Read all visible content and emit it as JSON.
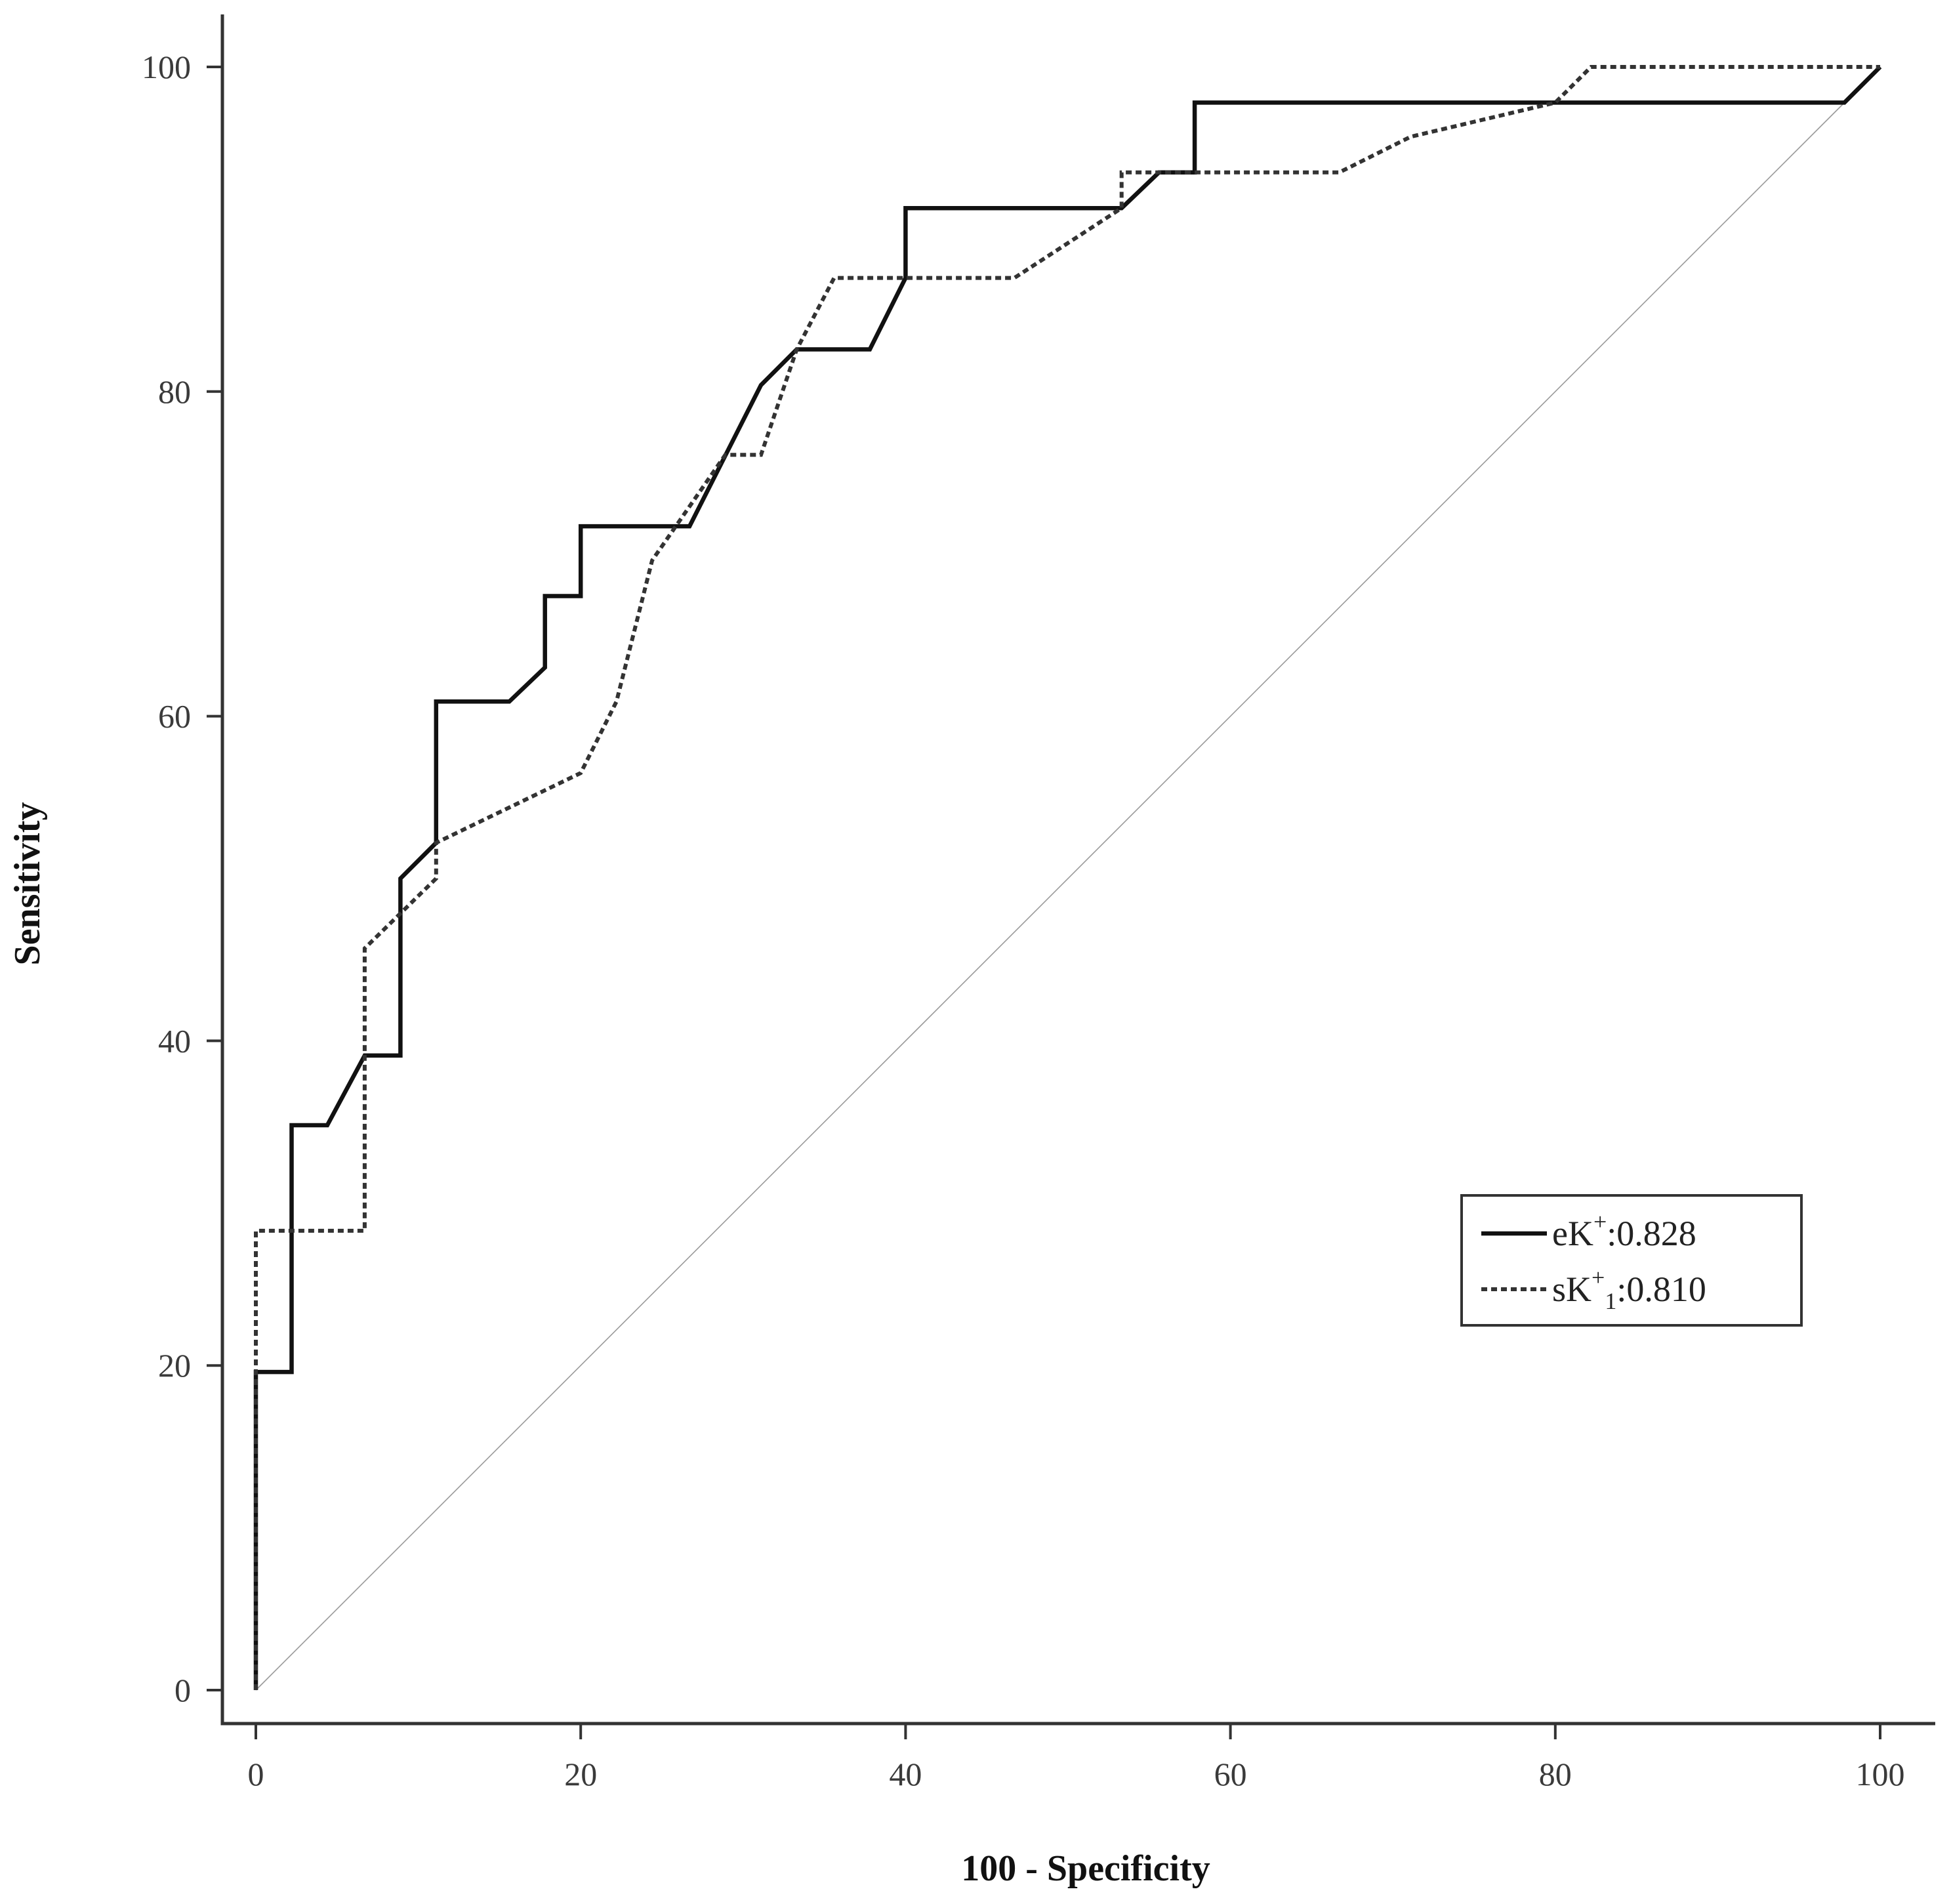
{
  "chart_data": {
    "type": "line",
    "title": "",
    "xlabel": "100 - Specificity",
    "ylabel": "Sensitivity",
    "xlim": [
      0,
      100
    ],
    "ylim": [
      0,
      100
    ],
    "x_ticks": [
      "0",
      "20",
      "40",
      "60",
      "80",
      "100"
    ],
    "y_ticks": [
      "0",
      "20",
      "40",
      "60",
      "80",
      "100"
    ],
    "grid": false,
    "legend_position": "right",
    "reference_line": {
      "x": [
        0,
        100
      ],
      "y": [
        0,
        100
      ],
      "color": "#9a9a9a"
    },
    "series": [
      {
        "name": "eK",
        "name_sup": "+",
        "name_sub": "",
        "auc_label": ":0.828",
        "style": "solid",
        "color": "#111111",
        "x": [
          0,
          0,
          2.2,
          2.2,
          4.4,
          6.7,
          8.9,
          8.9,
          11.1,
          11.1,
          15.6,
          17.8,
          17.8,
          20,
          20,
          26.7,
          31.1,
          33.3,
          37.8,
          40,
          40,
          53.3,
          55.6,
          57.8,
          57.8,
          97.8,
          100
        ],
        "y": [
          0,
          19.6,
          19.6,
          34.8,
          34.8,
          39.1,
          39.1,
          50,
          52.2,
          60.9,
          60.9,
          63,
          67.4,
          67.4,
          71.7,
          71.7,
          80.4,
          82.6,
          82.6,
          87,
          91.3,
          91.3,
          93.5,
          93.5,
          97.8,
          97.8,
          100
        ]
      },
      {
        "name": "sK",
        "name_sup": "+",
        "name_sub": "1",
        "auc_label": ":0.810",
        "style": "dotted",
        "color": "#333333",
        "x": [
          0,
          0,
          6.7,
          6.7,
          11.1,
          11.1,
          20,
          22.2,
          24.4,
          28.9,
          31.1,
          33.3,
          35.6,
          46.7,
          53.3,
          53.3,
          66.7,
          71.1,
          80,
          82.2,
          100
        ],
        "y": [
          0,
          28.3,
          28.3,
          45.7,
          50,
          52.2,
          56.5,
          60.9,
          69.6,
          76.1,
          76.1,
          82.6,
          87,
          87,
          91.3,
          93.5,
          93.5,
          95.7,
          97.8,
          100,
          100
        ]
      }
    ]
  }
}
